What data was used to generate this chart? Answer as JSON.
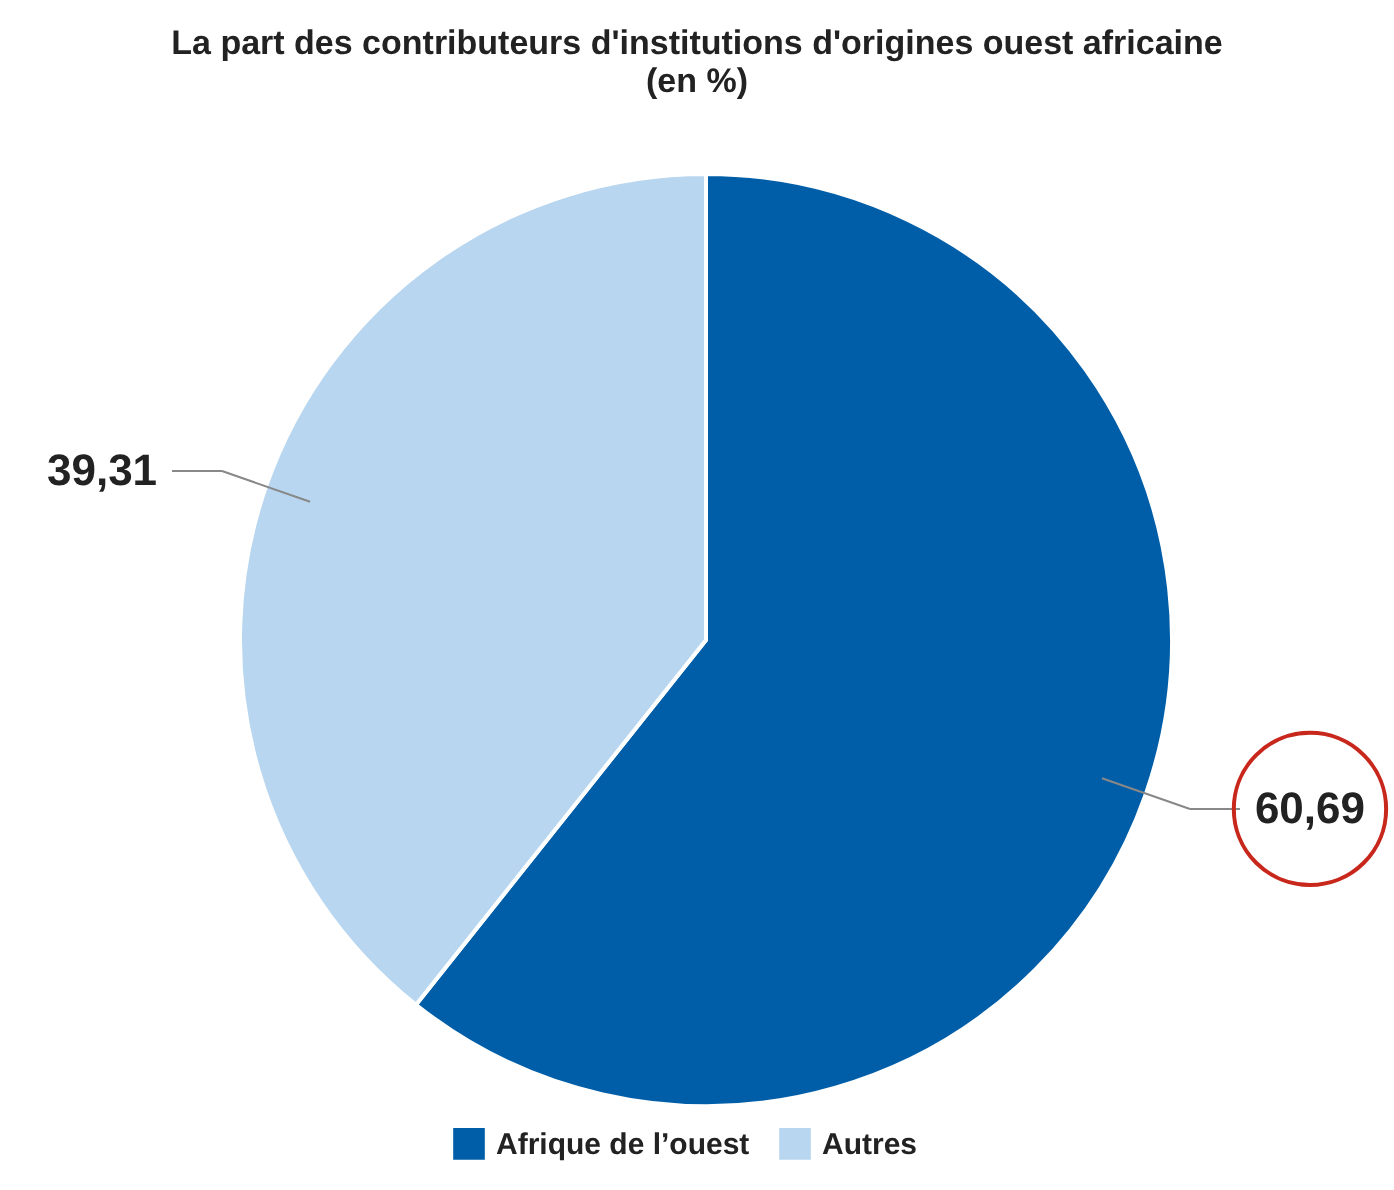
{
  "chart_data": {
    "type": "pie",
    "title": [
      "La part des contributeurs d'institutions d'origines ouest africaine",
      "(en %)"
    ],
    "categories": [
      "Afrique de l’ouest",
      "Autres"
    ],
    "values": [
      60.69,
      39.31
    ],
    "colors": [
      "#005ea8",
      "#b8d6f0"
    ],
    "value_labels": [
      "60,69",
      "39,31"
    ],
    "legend": "bottom"
  }
}
